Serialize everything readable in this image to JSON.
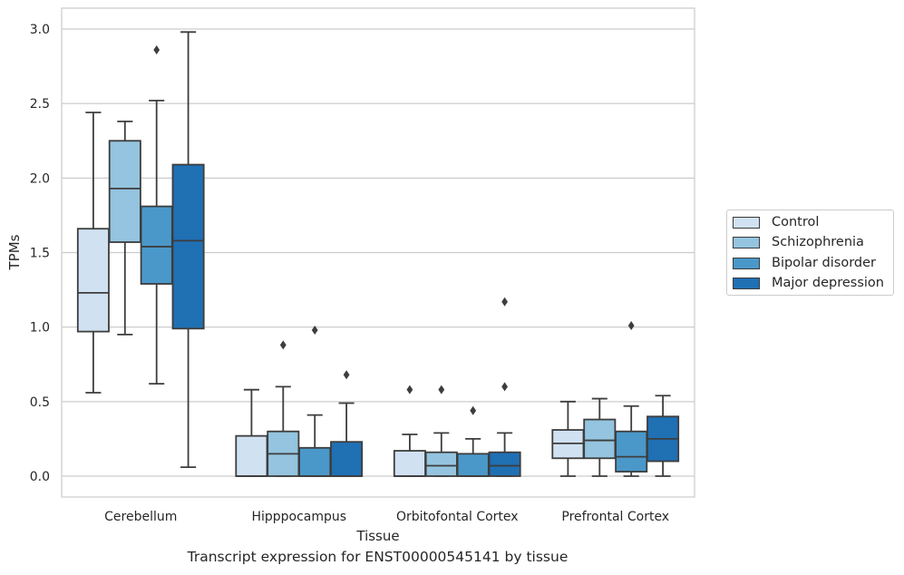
{
  "chart_data": {
    "type": "boxplot",
    "title": "Transcript expression for ENST00000545141 by tissue",
    "xlabel": "Tissue",
    "ylabel": "TPMs",
    "ylim": [
      -0.14,
      3.14
    ],
    "yticks": [
      0.0,
      0.5,
      1.0,
      1.5,
      2.0,
      2.5,
      3.0
    ],
    "ytick_labels": [
      "0.0",
      "0.5",
      "1.0",
      "1.5",
      "2.0",
      "2.5",
      "3.0"
    ],
    "grid": "horizontal",
    "legend_position": "right, outside",
    "categories": [
      "Cerebellum",
      "Hipppocampus",
      "Orbitofontal Cortex",
      "Prefrontal Cortex"
    ],
    "series": [
      {
        "name": "Control",
        "color": "#d0e1f2",
        "boxes": [
          {
            "whislo": 0.56,
            "q1": 0.97,
            "med": 1.23,
            "q3": 1.66,
            "whishi": 2.44,
            "fliers": []
          },
          {
            "whislo": 0.0,
            "q1": 0.0,
            "med": 0.0,
            "q3": 0.27,
            "whishi": 0.58,
            "fliers": []
          },
          {
            "whislo": 0.0,
            "q1": 0.0,
            "med": 0.0,
            "q3": 0.17,
            "whishi": 0.28,
            "fliers": [
              0.58
            ]
          },
          {
            "whislo": 0.0,
            "q1": 0.12,
            "med": 0.22,
            "q3": 0.31,
            "whishi": 0.5,
            "fliers": []
          }
        ]
      },
      {
        "name": "Schizophrenia",
        "color": "#94c4df",
        "boxes": [
          {
            "whislo": 0.95,
            "q1": 1.57,
            "med": 1.93,
            "q3": 2.25,
            "whishi": 2.38,
            "fliers": []
          },
          {
            "whislo": 0.0,
            "q1": 0.0,
            "med": 0.15,
            "q3": 0.3,
            "whishi": 0.6,
            "fliers": [
              0.88
            ]
          },
          {
            "whislo": 0.0,
            "q1": 0.0,
            "med": 0.07,
            "q3": 0.16,
            "whishi": 0.29,
            "fliers": [
              0.58
            ]
          },
          {
            "whislo": 0.0,
            "q1": 0.12,
            "med": 0.24,
            "q3": 0.38,
            "whishi": 0.52,
            "fliers": []
          }
        ]
      },
      {
        "name": "Bipolar disorder",
        "color": "#4a98c9",
        "boxes": [
          {
            "whislo": 0.62,
            "q1": 1.29,
            "med": 1.54,
            "q3": 1.81,
            "whishi": 2.52,
            "fliers": [
              2.86
            ]
          },
          {
            "whislo": 0.0,
            "q1": 0.0,
            "med": 0.0,
            "q3": 0.19,
            "whishi": 0.41,
            "fliers": [
              0.98
            ]
          },
          {
            "whislo": 0.0,
            "q1": 0.0,
            "med": 0.0,
            "q3": 0.15,
            "whishi": 0.25,
            "fliers": [
              0.44
            ]
          },
          {
            "whislo": 0.0,
            "q1": 0.03,
            "med": 0.13,
            "q3": 0.3,
            "whishi": 0.47,
            "fliers": [
              1.01
            ]
          }
        ]
      },
      {
        "name": "Major depression",
        "color": "#2070b4",
        "boxes": [
          {
            "whislo": 0.06,
            "q1": 0.99,
            "med": 1.58,
            "q3": 2.09,
            "whishi": 2.98,
            "fliers": []
          },
          {
            "whislo": 0.0,
            "q1": 0.0,
            "med": 0.0,
            "q3": 0.23,
            "whishi": 0.49,
            "fliers": [
              0.68
            ]
          },
          {
            "whislo": 0.0,
            "q1": 0.0,
            "med": 0.07,
            "q3": 0.16,
            "whishi": 0.29,
            "fliers": [
              0.6,
              1.17
            ]
          },
          {
            "whislo": 0.0,
            "q1": 0.1,
            "med": 0.25,
            "q3": 0.4,
            "whishi": 0.54,
            "fliers": []
          }
        ]
      }
    ]
  }
}
